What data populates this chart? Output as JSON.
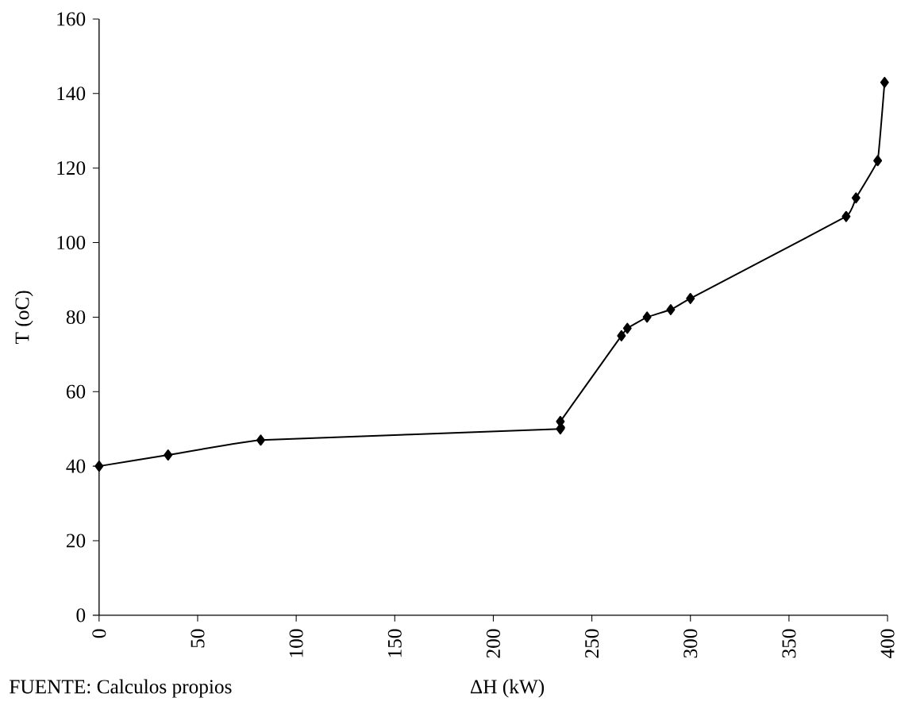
{
  "chart_data": {
    "type": "line",
    "xlabel": "ΔH (kW)",
    "ylabel": "T (oC)",
    "annotations": [
      "FUENTE: Calculos propios"
    ],
    "x": [
      0,
      35,
      82,
      234,
      234,
      265,
      268,
      278,
      290,
      300,
      379,
      384,
      395,
      398.5
    ],
    "series": [
      {
        "color": "#000000",
        "values": [
          40,
          43,
          47,
          50,
          52,
          75,
          77,
          80,
          82,
          85,
          107,
          112,
          122,
          143
        ]
      }
    ],
    "xlim": [
      0,
      400
    ],
    "xticks": [
      0,
      50,
      100,
      150,
      200,
      250,
      300,
      350,
      400
    ],
    "ylim": [
      0,
      160
    ],
    "yticks": [
      0,
      20,
      40,
      60,
      80,
      100,
      120,
      140,
      160
    ],
    "marker": "diamond",
    "line_style": "solid"
  }
}
